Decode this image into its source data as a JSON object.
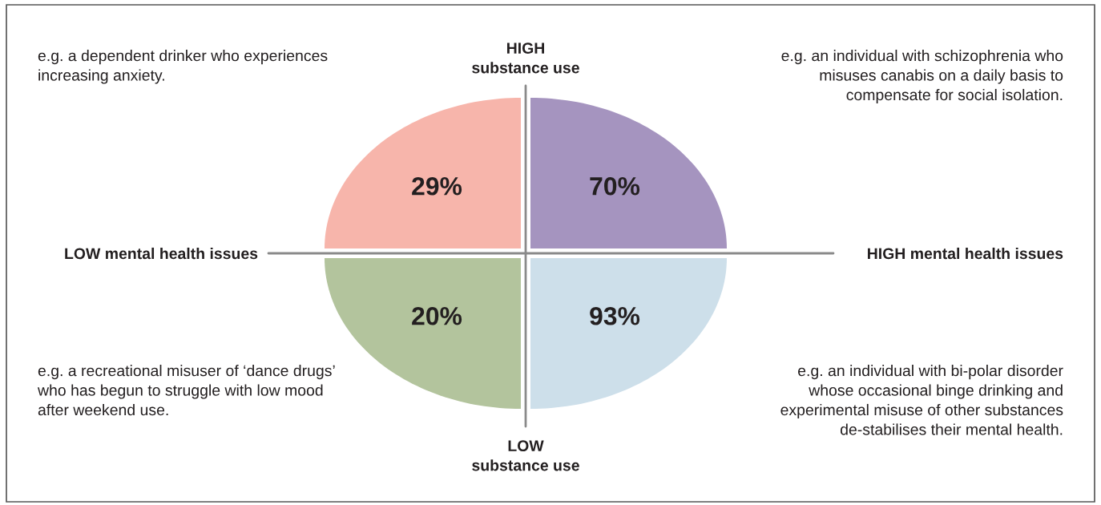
{
  "chart_data": {
    "type": "other",
    "categories": [
      null,
      null,
      null,
      null
    ],
    "values": [
      29,
      70,
      20,
      93
    ],
    "value_labels": [
      "29%",
      "70%",
      "20%",
      "93%"
    ],
    "colors": [
      "#f7b5ab",
      "#a594bf",
      "#b3c49d",
      "#cddfea"
    ],
    "annotations": [
      "e.g. a dependent drinker who experiences\nincreasing anxiety.",
      "e.g. an individual with schizophrenia who\nmisuses canabis on a daily basis to\ncompensate for social isolation.",
      "e.g. a recreational misuser of ‘dance drugs’\nwho has begun to struggle with low mood\nafter weekend use.",
      "e.g. an individual with bi-polar disorder\nwhose occasional binge drinking and\nexperimental misuse of other substances\nde-stabilises their mental health.",
      "HIGH\nsubstance use",
      "LOW\nsubstance use",
      "LOW mental health issues",
      "HIGH mental health issues"
    ]
  }
}
